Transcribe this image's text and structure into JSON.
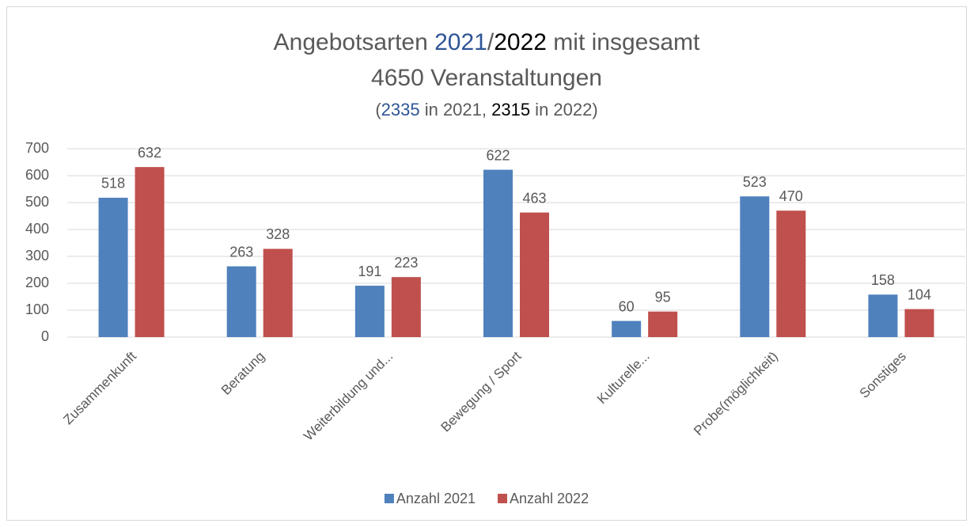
{
  "chart_data": {
    "type": "bar",
    "title": [
      [
        {
          "text": "Angebotsarten ",
          "color": "#595959"
        },
        {
          "text": "2021",
          "color": "#2f5597"
        },
        {
          "text": "/",
          "color": "#595959"
        },
        {
          "text": "2022",
          "color": "#000000"
        },
        {
          "text": " mit insgesamt",
          "color": "#595959"
        }
      ],
      [
        {
          "text": "4650 Veranstaltungen",
          "color": "#595959"
        }
      ]
    ],
    "subtitle": [
      {
        "text": "(",
        "color": "#595959"
      },
      {
        "text": "2335",
        "color": "#2f5597"
      },
      {
        "text": " in 2021, ",
        "color": "#595959"
      },
      {
        "text": "2315",
        "color": "#000000"
      },
      {
        "text": " in 2022)",
        "color": "#595959"
      }
    ],
    "categories": [
      "Zusammenkunft",
      "Beratung",
      "Weiterbildung und...",
      "Bewegung / Sport",
      "Kulturelle...",
      "Probe(möglichkeit)",
      "Sonstiges"
    ],
    "series": [
      {
        "name": "Anzahl 2021",
        "color": "#4f81bd",
        "values": [
          518,
          263,
          191,
          622,
          60,
          523,
          158
        ]
      },
      {
        "name": "Anzahl 2022",
        "color": "#c0504d",
        "values": [
          632,
          328,
          223,
          463,
          95,
          470,
          104
        ]
      }
    ],
    "ylim": [
      0,
      700
    ],
    "yticks": [
      0,
      100,
      200,
      300,
      400,
      500,
      600,
      700
    ],
    "grid": true,
    "legend": "bottom"
  }
}
